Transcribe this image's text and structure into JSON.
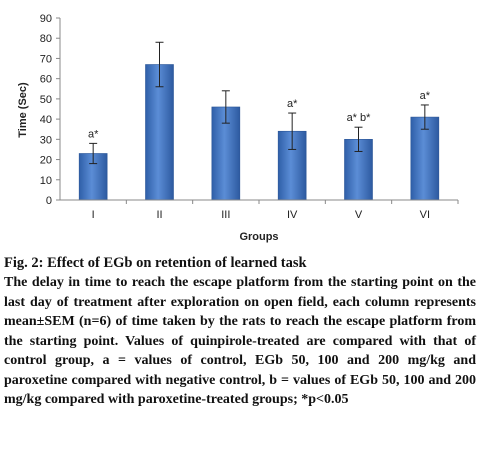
{
  "chart_data": {
    "type": "bar",
    "categories": [
      "I",
      "II",
      "III",
      "IV",
      "V",
      "VI"
    ],
    "values": [
      23,
      67,
      46,
      34,
      30,
      41
    ],
    "errors": [
      5,
      11,
      8,
      9,
      6,
      6
    ],
    "annotations": [
      "a*",
      "",
      "",
      "a*",
      "a* b*",
      "a*"
    ],
    "ylabel": "Time (Sec)",
    "xlabel": "Groups",
    "ylim": [
      0,
      90
    ],
    "yticks": [
      0,
      10,
      20,
      30,
      40,
      50,
      60,
      70,
      80,
      90
    ],
    "grid": false,
    "bar_color": "#4a7cc9"
  },
  "caption": {
    "title": "Fig. 2: Effect of EGb on retention of learned task",
    "body": "The delay in time to reach the escape platform from the starting point on the last day of treatment after exploration on open field, each column represents mean±SEM (n=6) of time taken by the rats to reach the escape platform from the starting point. Values of quinpirole-treated are compared with that of control group, a = values of control, EGb 50, 100 and 200 mg/kg and paroxetine compared with negative control, b = values of EGb 50, 100 and 200 mg/kg compared with paroxetine-treated groups; *p<0.05"
  }
}
